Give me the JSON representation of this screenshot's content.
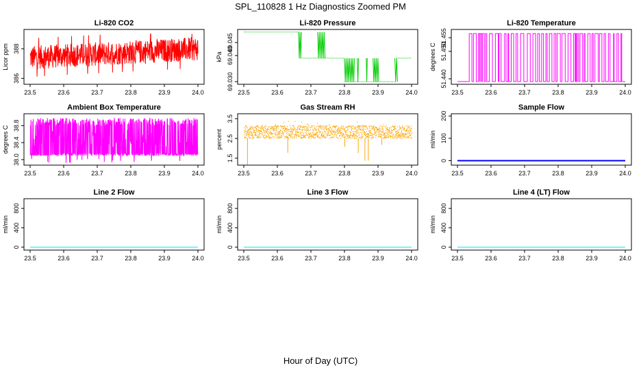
{
  "page": {
    "title": "SPL_110828  1 Hz Diagnostics Zoomed PM",
    "xlabel": "Hour of Day (UTC)"
  },
  "chart_data": [
    {
      "type": "line",
      "title": "Li-820 CO2",
      "ylabel": "Licor ppm",
      "color": "#ff0000",
      "x_ticks": [
        "23.5",
        "23.6",
        "23.7",
        "23.8",
        "23.9",
        "24.0"
      ],
      "xlim": [
        23.5,
        24.0
      ],
      "y_ticks": [
        {
          "value": 386,
          "label": "386"
        },
        {
          "value": 388,
          "label": "388"
        }
      ],
      "ylim": [
        385.6,
        389.3
      ],
      "series": [
        {
          "name": "CO2",
          "x_range": [
            23.5,
            24.0
          ],
          "center_start": 387.4,
          "center_end": 388.0,
          "noise": 1.0,
          "min": 385.9,
          "max": 389.0
        }
      ]
    },
    {
      "type": "line",
      "title": "Li-820 Pressure",
      "ylabel": "kPa",
      "color": "#00cc00",
      "x_ticks": [
        "23.5",
        "23.6",
        "23.7",
        "23.8",
        "23.9",
        "24.0"
      ],
      "xlim": [
        23.5,
        24.0
      ],
      "y_ticks": [
        {
          "value": 69.03,
          "label": "69.030"
        },
        {
          "value": 69.04,
          "label": "69.040"
        },
        {
          "value": 69.045,
          "label": "69.045"
        }
      ],
      "ylim": [
        69.029,
        69.05
      ],
      "series": [
        {
          "name": "Pressure",
          "levels": [
            69.049,
            69.039,
            69.03
          ],
          "segments": [
            {
              "x0": 23.5,
              "x1": 23.665,
              "level": 69.049
            },
            {
              "x0": 23.665,
              "x1": 23.8,
              "level": 69.039
            },
            {
              "x0": 23.8,
              "x1": 23.955,
              "level": 69.03
            },
            {
              "x0": 23.955,
              "x1": 24.0,
              "level": 69.039
            }
          ],
          "toggle_bands": [
            {
              "x0": 23.663,
              "x1": 23.672,
              "levels": [
                69.049,
                69.039
              ]
            },
            {
              "x0": 23.72,
              "x1": 23.742,
              "levels": [
                69.049,
                69.039
              ]
            },
            {
              "x0": 23.8,
              "x1": 23.83,
              "levels": [
                69.039,
                69.03
              ]
            },
            {
              "x0": 23.838,
              "x1": 23.842,
              "levels": [
                69.039,
                69.03
              ]
            },
            {
              "x0": 23.865,
              "x1": 23.868,
              "levels": [
                69.039,
                69.03
              ]
            },
            {
              "x0": 23.885,
              "x1": 23.902,
              "levels": [
                69.039,
                69.03
              ]
            },
            {
              "x0": 23.95,
              "x1": 23.958,
              "levels": [
                69.039,
                69.03
              ]
            }
          ]
        }
      ]
    },
    {
      "type": "line",
      "title": "Li-820 Temperature",
      "ylabel": "degrees C",
      "color": "#ff00ff",
      "x_ticks": [
        "23.5",
        "23.6",
        "23.7",
        "23.8",
        "23.9",
        "24.0"
      ],
      "xlim": [
        23.5,
        24.0
      ],
      "y_ticks": [
        {
          "value": 51.44,
          "label": "51.440"
        },
        {
          "value": 51.45,
          "label": "51.450"
        },
        {
          "value": 51.455,
          "label": "51.455"
        }
      ],
      "ylim": [
        51.438,
        51.458
      ],
      "series": [
        {
          "name": "Temperature",
          "levels": [
            51.4565,
            51.439
          ],
          "switch_start": 23.535
        }
      ]
    },
    {
      "type": "line",
      "title": "Ambient Box Temperature",
      "ylabel": "degrees C",
      "color": "#ff00ff",
      "x_ticks": [
        "23.5",
        "23.6",
        "23.7",
        "23.8",
        "23.9",
        "24.0"
      ],
      "xlim": [
        23.5,
        24.0
      ],
      "y_ticks": [
        {
          "value": 38.0,
          "label": "38.0"
        },
        {
          "value": 38.4,
          "label": "38.4"
        },
        {
          "value": 38.8,
          "label": "38.8"
        }
      ],
      "ylim": [
        37.87,
        39.08
      ],
      "series": [
        {
          "name": "Box temperature",
          "low": 38.12,
          "mid": 38.5,
          "high": 38.98,
          "min": 37.92
        }
      ]
    },
    {
      "type": "scatter",
      "title": "Gas Stream RH",
      "ylabel": "percent",
      "color": "#ffa500",
      "x_ticks": [
        "23.5",
        "23.6",
        "23.7",
        "23.8",
        "23.9",
        "24.0"
      ],
      "xlim": [
        23.5,
        24.0
      ],
      "y_ticks": [
        {
          "value": 1.5,
          "label": "1.5"
        },
        {
          "value": 2.5,
          "label": "2.5"
        },
        {
          "value": 3.5,
          "label": "3.5"
        }
      ],
      "ylim": [
        1.15,
        3.75
      ],
      "series": [
        {
          "name": "RH",
          "band_low": 2.5,
          "band_high": 3.15,
          "dips": [
            {
              "x": 23.51,
              "y": 1.2
            },
            {
              "x": 23.63,
              "y": 1.8
            },
            {
              "x": 23.84,
              "y": 1.8
            },
            {
              "x": 23.86,
              "y": 1.4
            },
            {
              "x": 23.87,
              "y": 1.4
            },
            {
              "x": 23.8,
              "y": 2.1
            },
            {
              "x": 23.91,
              "y": 2.2
            }
          ]
        }
      ]
    },
    {
      "type": "line",
      "title": "Sample Flow",
      "ylabel": "ml/min",
      "color": "#0000ff",
      "x_ticks": [
        "23.5",
        "23.6",
        "23.7",
        "23.8",
        "23.9",
        "24.0"
      ],
      "xlim": [
        23.5,
        24.0
      ],
      "y_ticks": [
        {
          "value": 0,
          "label": "0"
        },
        {
          "value": 100,
          "label": "100"
        },
        {
          "value": 200,
          "label": "200"
        }
      ],
      "ylim": [
        -20,
        210
      ],
      "series": [
        {
          "name": "Sample flow",
          "x": [
            23.5,
            24.0
          ],
          "y": [
            0,
            0
          ]
        }
      ]
    },
    {
      "type": "line",
      "title": "Line 2 Flow",
      "ylabel": "ml/min",
      "color": "#00e5ee",
      "x_ticks": [
        "23.5",
        "23.6",
        "23.7",
        "23.8",
        "23.9",
        "24.0"
      ],
      "xlim": [
        23.5,
        24.0
      ],
      "y_ticks": [
        {
          "value": 0,
          "label": "0"
        },
        {
          "value": 400,
          "label": "400"
        },
        {
          "value": 800,
          "label": "800"
        }
      ],
      "ylim": [
        -60,
        1000
      ],
      "series": [
        {
          "name": "Line 2 flow",
          "x": [
            23.5,
            24.0
          ],
          "y": [
            0,
            0
          ]
        }
      ]
    },
    {
      "type": "line",
      "title": "Line 3 Flow",
      "ylabel": "ml/min",
      "color": "#00e5ee",
      "x_ticks": [
        "23.5",
        "23.6",
        "23.7",
        "23.8",
        "23.9",
        "24.0"
      ],
      "xlim": [
        23.5,
        24.0
      ],
      "y_ticks": [
        {
          "value": 0,
          "label": "0"
        },
        {
          "value": 400,
          "label": "400"
        },
        {
          "value": 800,
          "label": "800"
        }
      ],
      "ylim": [
        -60,
        1000
      ],
      "series": [
        {
          "name": "Line 3 flow",
          "x": [
            23.5,
            24.0
          ],
          "y": [
            0,
            0
          ]
        }
      ]
    },
    {
      "type": "line",
      "title": "Line 4 (LT) Flow",
      "ylabel": "ml/min",
      "color": "#00e5ee",
      "x_ticks": [
        "23.5",
        "23.6",
        "23.7",
        "23.8",
        "23.9",
        "24.0"
      ],
      "xlim": [
        23.5,
        24.0
      ],
      "y_ticks": [
        {
          "value": 0,
          "label": "0"
        },
        {
          "value": 400,
          "label": "400"
        },
        {
          "value": 800,
          "label": "800"
        }
      ],
      "ylim": [
        -60,
        1000
      ],
      "series": [
        {
          "name": "Line 4 flow",
          "x": [
            23.5,
            24.0
          ],
          "y": [
            0,
            0
          ]
        }
      ]
    }
  ]
}
